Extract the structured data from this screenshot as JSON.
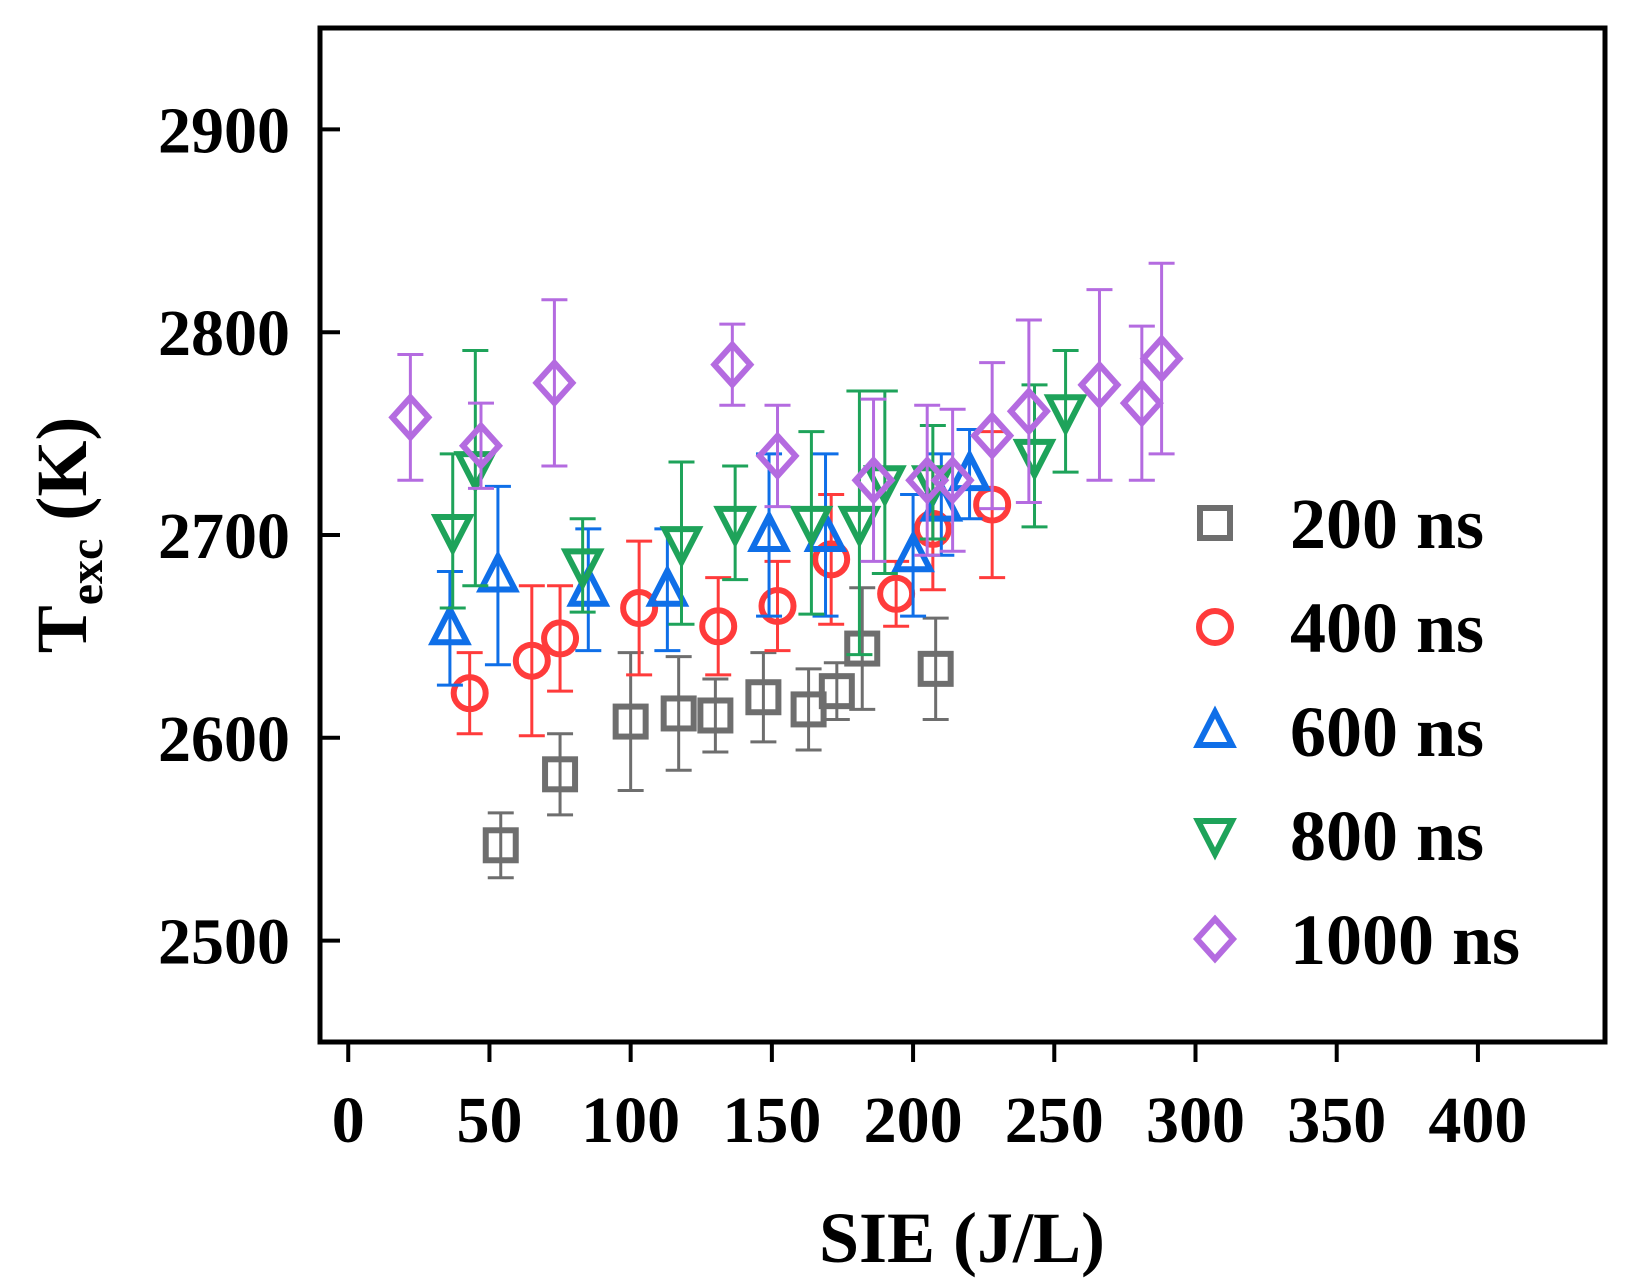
{
  "chart_data": {
    "type": "scatter",
    "title": "",
    "xlabel": "SIE (J/L)",
    "ylabel_main": "T",
    "ylabel_sub": "exc",
    "ylabel_unit": " (K)",
    "xlim": [
      -10,
      445
    ],
    "ylim": [
      2450,
      2950
    ],
    "xticks": [
      0,
      50,
      100,
      150,
      200,
      250,
      300,
      350,
      400
    ],
    "xtick_labels": [
      "0",
      "50",
      "100",
      "150",
      "200",
      "250",
      "300",
      "350",
      "400"
    ],
    "yticks": [
      2500,
      2600,
      2700,
      2800,
      2900
    ],
    "ytick_labels": [
      "2500",
      "2600",
      "2700",
      "2800",
      "2900"
    ],
    "legend_position": "bottom-right",
    "series": [
      {
        "name": "200 ns",
        "marker": "square",
        "color": "#6e6e6e",
        "points": [
          {
            "x": 54,
            "y": 2547,
            "err": 16
          },
          {
            "x": 75,
            "y": 2582,
            "err": 20
          },
          {
            "x": 100,
            "y": 2608,
            "err": 34
          },
          {
            "x": 117,
            "y": 2612,
            "err": 28
          },
          {
            "x": 130,
            "y": 2611,
            "err": 18
          },
          {
            "x": 147,
            "y": 2620,
            "err": 22
          },
          {
            "x": 163,
            "y": 2614,
            "err": 20
          },
          {
            "x": 173,
            "y": 2623,
            "err": 14
          },
          {
            "x": 182,
            "y": 2644,
            "err": 30
          },
          {
            "x": 208,
            "y": 2634,
            "err": 25
          }
        ]
      },
      {
        "name": "400 ns",
        "marker": "circle",
        "color": "#ff3b3b",
        "points": [
          {
            "x": 43,
            "y": 2622,
            "err": 20
          },
          {
            "x": 65,
            "y": 2638,
            "err": 37
          },
          {
            "x": 75,
            "y": 2649,
            "err": 26
          },
          {
            "x": 103,
            "y": 2664,
            "err": 33
          },
          {
            "x": 131,
            "y": 2655,
            "err": 24
          },
          {
            "x": 152,
            "y": 2665,
            "err": 22
          },
          {
            "x": 171,
            "y": 2688,
            "err": 32
          },
          {
            "x": 194,
            "y": 2671,
            "err": 16
          },
          {
            "x": 207,
            "y": 2703,
            "err": 30
          },
          {
            "x": 228,
            "y": 2715,
            "err": 36
          }
        ]
      },
      {
        "name": "600 ns",
        "marker": "triangle-up",
        "color": "#0f6fe8",
        "points": [
          {
            "x": 36,
            "y": 2654,
            "err": 28
          },
          {
            "x": 53,
            "y": 2680,
            "err": 44
          },
          {
            "x": 85,
            "y": 2673,
            "err": 30
          },
          {
            "x": 113,
            "y": 2673,
            "err": 30
          },
          {
            "x": 149,
            "y": 2700,
            "err": 40
          },
          {
            "x": 169,
            "y": 2700,
            "err": 40
          },
          {
            "x": 200,
            "y": 2690,
            "err": 30
          },
          {
            "x": 210,
            "y": 2715,
            "err": 25
          },
          {
            "x": 220,
            "y": 2730,
            "err": 22
          }
        ]
      },
      {
        "name": "800 ns",
        "marker": "triangle-down",
        "color": "#1ea35a",
        "points": [
          {
            "x": 37,
            "y": 2702,
            "err": 38
          },
          {
            "x": 45,
            "y": 2733,
            "err": 58
          },
          {
            "x": 83,
            "y": 2685,
            "err": 23
          },
          {
            "x": 118,
            "y": 2696,
            "err": 40
          },
          {
            "x": 137,
            "y": 2706,
            "err": 28
          },
          {
            "x": 164,
            "y": 2706,
            "err": 45
          },
          {
            "x": 181,
            "y": 2706,
            "err": 65
          },
          {
            "x": 190,
            "y": 2726,
            "err": 45
          },
          {
            "x": 207,
            "y": 2726,
            "err": 28
          },
          {
            "x": 243,
            "y": 2739,
            "err": 35
          },
          {
            "x": 254,
            "y": 2761,
            "err": 30
          }
        ]
      },
      {
        "name": "1000 ns",
        "marker": "diamond",
        "color": "#b46be0",
        "points": [
          {
            "x": 22,
            "y": 2758,
            "err": 31
          },
          {
            "x": 47,
            "y": 2744,
            "err": 21
          },
          {
            "x": 73,
            "y": 2775,
            "err": 41
          },
          {
            "x": 136,
            "y": 2784,
            "err": 20
          },
          {
            "x": 152,
            "y": 2739,
            "err": 25
          },
          {
            "x": 186,
            "y": 2727,
            "err": 40
          },
          {
            "x": 205,
            "y": 2727,
            "err": 37
          },
          {
            "x": 214,
            "y": 2727,
            "err": 35
          },
          {
            "x": 228,
            "y": 2749,
            "err": 36
          },
          {
            "x": 241,
            "y": 2761,
            "err": 45
          },
          {
            "x": 266,
            "y": 2774,
            "err": 47
          },
          {
            "x": 281,
            "y": 2765,
            "err": 38
          },
          {
            "x": 288,
            "y": 2787,
            "err": 47
          }
        ]
      }
    ]
  }
}
